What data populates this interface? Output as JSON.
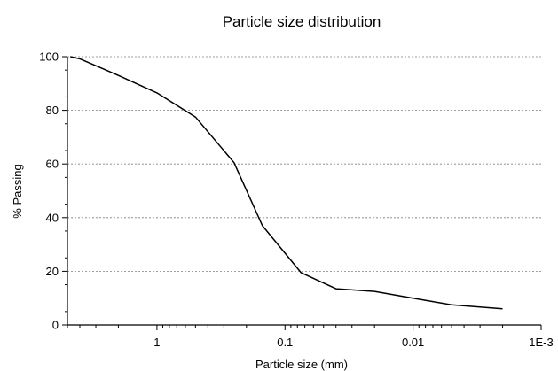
{
  "chart_data": {
    "type": "line",
    "title": "Particle size distribution",
    "xlabel": "Particle size (mm)",
    "ylabel": "% Passing",
    "x_scale": "log",
    "x_reversed": true,
    "xlim": [
      5,
      0.001
    ],
    "ylim": [
      0,
      100
    ],
    "x_ticks": [
      1,
      0.1,
      0.01,
      0.001
    ],
    "x_tick_labels": [
      "1",
      "0.1",
      "0.01",
      "1E-3"
    ],
    "y_ticks": [
      0,
      20,
      40,
      60,
      80,
      100
    ],
    "y_tick_labels": [
      "0",
      "20",
      "40",
      "60",
      "80",
      "100"
    ],
    "grid": "horizontal dashed at y ticks",
    "series": [
      {
        "color": "#000000",
        "x": [
          4.75,
          4.0,
          2.0,
          1.0,
          0.5,
          0.25,
          0.15,
          0.075,
          0.04,
          0.02,
          0.01,
          0.005,
          0.002
        ],
        "y": [
          100,
          99.2,
          93,
          86.5,
          77.5,
          60.5,
          37,
          19.5,
          13.5,
          12.5,
          10,
          7.5,
          6
        ]
      }
    ]
  }
}
